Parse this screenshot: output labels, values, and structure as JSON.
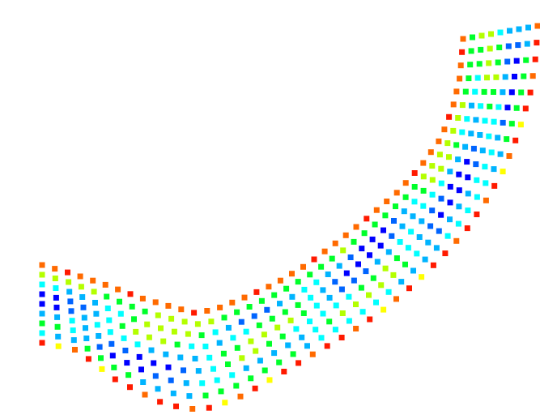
{
  "palette": {
    "background": "#ffffff",
    "red": "#ff1a00",
    "orange": "#ff6a00",
    "yellow": "#ffff00",
    "yellow_green": "#b4ff00",
    "green": "#00ff2a",
    "cyan": "#00ffff",
    "light_blue": "#00b4ff",
    "blue": "#0064ff",
    "dark_blue": "#0000ff"
  },
  "figure": {
    "description_type": "curved-mesh-point-cloud",
    "rows_across": 9,
    "columns_along": 44,
    "color_scale_order": [
      "dark_blue",
      "blue",
      "light_blue",
      "cyan",
      "green",
      "yellow_green",
      "yellow",
      "orange",
      "red"
    ]
  }
}
